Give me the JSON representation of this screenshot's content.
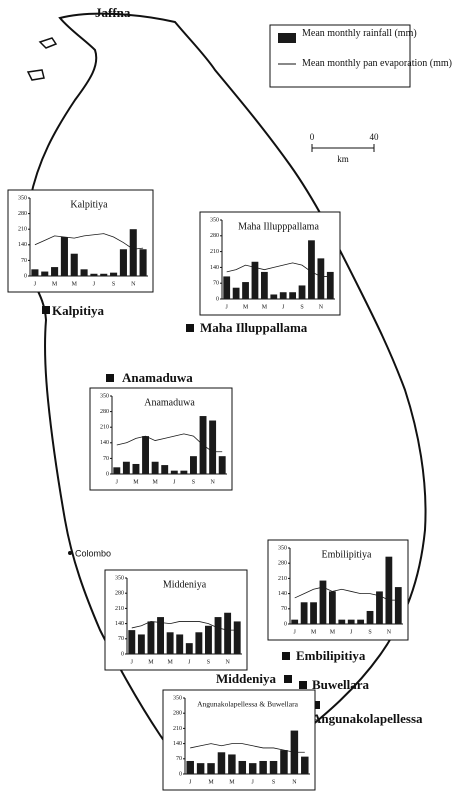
{
  "map": {
    "places": [
      "Jaffna",
      "Kalpitiya",
      "Maha Illuppallama",
      "Anamaduwa",
      "Colombo",
      "Embilipitiya",
      "Middeniya",
      "Buwellara",
      "Angunakolapellessa"
    ],
    "scale": {
      "ticks": [
        "0",
        "40"
      ],
      "unit": "km"
    }
  },
  "legend": [
    "Mean monthly rainfall (mm)",
    "Mean monthly pan evaporation (mm)"
  ],
  "chart_data": [
    {
      "type": "bar",
      "title": "Kalpitiya",
      "categories": [
        "J",
        null,
        "M",
        null,
        "M",
        null,
        "J",
        null,
        "S",
        null,
        "N",
        null
      ],
      "ylim": [
        0,
        350
      ],
      "yticks": [
        0,
        70,
        140,
        210,
        280,
        350
      ],
      "series": [
        {
          "type": "bar",
          "color": "#1a1a1a",
          "values": [
            30,
            20,
            40,
            175,
            100,
            30,
            10,
            10,
            15,
            120,
            210,
            120
          ]
        },
        {
          "type": "line",
          "color": "#1a1a1a",
          "values": [
            140,
            160,
            180,
            175,
            170,
            180,
            185,
            190,
            175,
            150,
            120,
            125
          ]
        }
      ]
    },
    {
      "type": "bar",
      "title": "Maha Illupppallama",
      "categories": [
        "J",
        null,
        "M",
        null,
        "M",
        null,
        "J",
        null,
        "S",
        null,
        "N",
        null
      ],
      "ylim": [
        0,
        350
      ],
      "yticks": [
        0,
        70,
        140,
        210,
        280,
        350
      ],
      "series": [
        {
          "type": "bar",
          "color": "#1a1a1a",
          "values": [
            100,
            50,
            75,
            165,
            120,
            20,
            30,
            30,
            60,
            260,
            180,
            120
          ]
        },
        {
          "type": "line",
          "color": "#1a1a1a",
          "values": [
            120,
            130,
            150,
            140,
            130,
            140,
            150,
            160,
            150,
            120,
            100,
            100
          ]
        }
      ]
    },
    {
      "type": "bar",
      "title": "Anamaduwa",
      "categories": [
        "J",
        null,
        "M",
        null,
        "M",
        null,
        "J",
        null,
        "S",
        null,
        "N",
        null
      ],
      "ylim": [
        0,
        350
      ],
      "yticks": [
        0,
        70,
        140,
        210,
        280,
        350
      ],
      "series": [
        {
          "type": "bar",
          "color": "#1a1a1a",
          "values": [
            30,
            55,
            45,
            170,
            55,
            40,
            15,
            15,
            80,
            260,
            240,
            80
          ]
        },
        {
          "type": "line",
          "color": "#1a1a1a",
          "values": [
            130,
            140,
            160,
            170,
            150,
            160,
            170,
            180,
            170,
            130,
            100,
            100
          ]
        }
      ]
    },
    {
      "type": "bar",
      "title": "Embilipitiya",
      "categories": [
        "J",
        null,
        "M",
        null,
        "M",
        null,
        "J",
        null,
        "S",
        null,
        "N",
        null
      ],
      "ylim": [
        0,
        350
      ],
      "yticks": [
        0,
        70,
        140,
        210,
        280,
        350
      ],
      "series": [
        {
          "type": "bar",
          "color": "#1a1a1a",
          "values": [
            20,
            100,
            100,
            200,
            150,
            20,
            20,
            20,
            60,
            150,
            310,
            170
          ]
        },
        {
          "type": "line",
          "color": "#1a1a1a",
          "values": [
            120,
            140,
            160,
            170,
            150,
            160,
            150,
            140,
            140,
            130,
            110,
            110
          ]
        }
      ]
    },
    {
      "type": "bar",
      "title": "Middeniya",
      "categories": [
        "J",
        null,
        "M",
        null,
        "M",
        null,
        "J",
        null,
        "S",
        null,
        "N",
        null
      ],
      "ylim": [
        0,
        350
      ],
      "yticks": [
        0,
        70,
        140,
        210,
        280,
        350
      ],
      "series": [
        {
          "type": "bar",
          "color": "#1a1a1a",
          "values": [
            110,
            90,
            150,
            170,
            100,
            90,
            50,
            100,
            130,
            170,
            190,
            150
          ]
        },
        {
          "type": "line",
          "color": "#1a1a1a",
          "values": [
            120,
            130,
            150,
            145,
            140,
            150,
            150,
            150,
            140,
            120,
            110,
            110
          ]
        }
      ]
    },
    {
      "type": "bar",
      "title": "Angunakolapellessa & Buwellara",
      "categories": [
        "J",
        null,
        "M",
        null,
        "M",
        null,
        "J",
        null,
        "S",
        null,
        "N",
        null
      ],
      "ylim": [
        0,
        350
      ],
      "yticks": [
        0,
        70,
        140,
        210,
        280,
        350
      ],
      "series": [
        {
          "type": "bar",
          "color": "#1a1a1a",
          "values": [
            60,
            50,
            50,
            100,
            90,
            60,
            50,
            60,
            60,
            110,
            200,
            80
          ]
        },
        {
          "type": "line",
          "color": "#1a1a1a",
          "values": [
            120,
            130,
            140,
            130,
            140,
            140,
            130,
            120,
            120,
            110,
            100,
            100
          ]
        }
      ]
    }
  ]
}
